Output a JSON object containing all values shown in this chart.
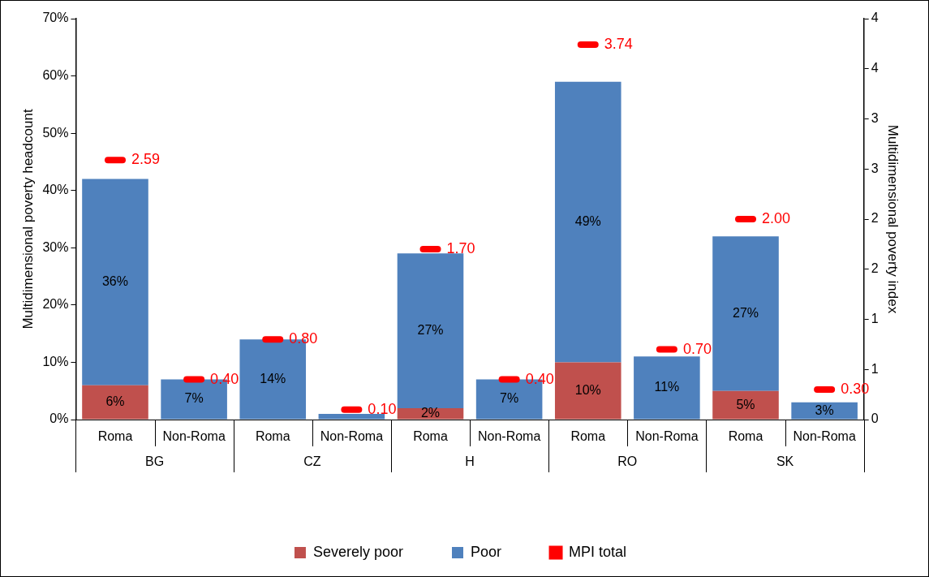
{
  "chart_data": {
    "type": "bar",
    "stacked": true,
    "categories": [
      "Roma",
      "Non-Roma",
      "Roma",
      "Non-Roma",
      "Roma",
      "Non-Roma",
      "Roma",
      "Non-Roma",
      "Roma",
      "Non-Roma"
    ],
    "annotations": [
      "BG",
      "CZ",
      "H",
      "RO",
      "SK"
    ],
    "ylabel": "Multidimensional poverty headcount",
    "y2label": "Multidimensional poverty index",
    "series": [
      {
        "name": "Severely poor",
        "color": "#c0504d",
        "values": [
          6,
          null,
          null,
          null,
          2,
          null,
          10,
          null,
          5,
          null
        ],
        "value_labels": [
          "6%",
          null,
          null,
          null,
          "2%",
          null,
          "10%",
          null,
          "5%",
          null
        ]
      },
      {
        "name": "Poor",
        "color": "#4f81bd",
        "values": [
          36,
          7,
          14,
          1,
          27,
          7,
          49,
          11,
          27,
          3
        ],
        "value_labels": [
          "36%",
          "7%",
          "14%",
          null,
          "27%",
          "7%",
          "49%",
          "11%",
          "27%",
          "3%"
        ]
      },
      {
        "name": "MPI total",
        "type": "scatter",
        "axis": "y2",
        "color": "#ff0000",
        "values": [
          2.59,
          0.4,
          0.8,
          0.1,
          1.7,
          0.4,
          3.74,
          0.7,
          2.0,
          0.3
        ],
        "value_labels": [
          "2.59",
          "0.40",
          "0.80",
          "0.10",
          "1.70",
          "0.40",
          "3.74",
          "0.70",
          "2.00",
          "0.30"
        ]
      }
    ],
    "ylim": [
      0,
      70
    ],
    "yticks": [
      {
        "value": 0,
        "label": "0%"
      },
      {
        "value": 10,
        "label": "10%"
      },
      {
        "value": 20,
        "label": "20%"
      },
      {
        "value": 30,
        "label": "30%"
      },
      {
        "value": 40,
        "label": "40%"
      },
      {
        "value": 50,
        "label": "50%"
      },
      {
        "value": 60,
        "label": "60%"
      },
      {
        "value": 70,
        "label": "70%"
      }
    ],
    "y2lim": [
      0,
      4
    ],
    "y2ticks": [
      0,
      {
        "value": 0.5,
        "label": "1"
      },
      1,
      {
        "value": 1.5,
        "label": "2"
      },
      2,
      {
        "value": 2.5,
        "label": "3"
      },
      3,
      {
        "value": 3.5,
        "label": "4"
      },
      4
    ],
    "grid": false,
    "legend": "bottom"
  }
}
